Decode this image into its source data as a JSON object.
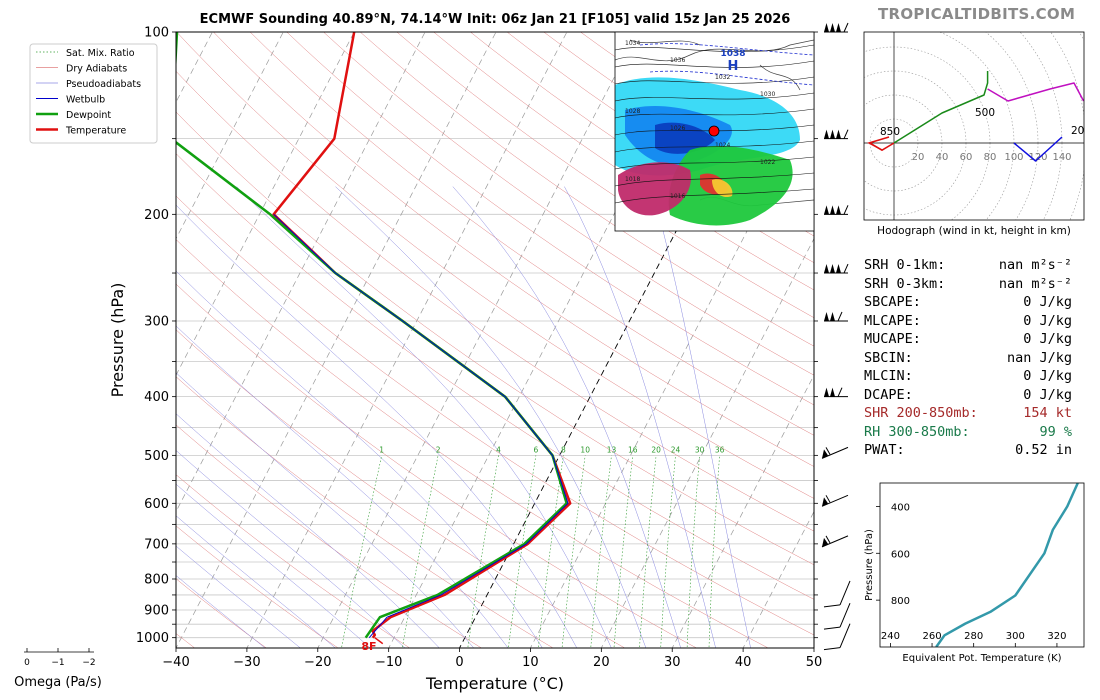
{
  "brand": "TROPICALTIDBITS.COM",
  "title": "ECMWF Sounding 40.89°N, 74.14°W Init: 06z Jan 21 [F105] valid 15z Jan 25 2026",
  "chart_data": [
    {
      "type": "skewt",
      "xlabel": "Temperature (°C)",
      "ylabel": "Pressure (hPa)",
      "xlim": [
        -40,
        50
      ],
      "ylim": [
        1040,
        100
      ],
      "x_ticks": [
        -40,
        -30,
        -20,
        -10,
        0,
        10,
        20,
        30,
        40,
        50
      ],
      "y_ticks": [
        100,
        200,
        300,
        400,
        500,
        600,
        700,
        800,
        900,
        1000
      ],
      "y_scale": "log",
      "legend": {
        "placement": "top-left",
        "entries": [
          "Sat. Mix. Ratio",
          "Dry Adiabats",
          "Pseudoadiabats",
          "Wetbulb",
          "Dewpoint",
          "Temperature"
        ]
      },
      "mixing_ratio_labels": [
        "1",
        "2",
        "4",
        "6",
        "8",
        "10",
        "13",
        "16",
        "20",
        "24",
        "30",
        "36"
      ],
      "surface_label": "8F",
      "series": [
        {
          "name": "Temperature",
          "color": "#e01010",
          "points": [
            [
              1000,
              -13
            ],
            [
              990,
              -12.9
            ],
            [
              975,
              -13.5
            ],
            [
              925,
              -12
            ],
            [
              850,
              -6
            ],
            [
              700,
              2
            ],
            [
              600,
              5
            ],
            [
              500,
              -1
            ],
            [
              400,
              -12
            ],
            [
              300,
              -32
            ],
            [
              250,
              -45
            ],
            [
              200,
              -58
            ],
            [
              150,
              -55
            ],
            [
              100,
              -60
            ]
          ]
        },
        {
          "name": "Dewpoint",
          "color": "#10a010",
          "points": [
            [
              1000,
              -14
            ],
            [
              925,
              -13.5
            ],
            [
              850,
              -7
            ],
            [
              700,
              1.5
            ],
            [
              600,
              4.5
            ],
            [
              500,
              -1
            ],
            [
              400,
              -12
            ],
            [
              300,
              -32
            ],
            [
              250,
              -45
            ],
            [
              200,
              -58.5
            ],
            [
              150,
              -78
            ],
            [
              100,
              -85
            ]
          ]
        },
        {
          "name": "Wetbulb",
          "color": "#0000cc",
          "points": [
            [
              1000,
              -13.5
            ],
            [
              925,
              -12.5
            ],
            [
              850,
              -6.5
            ],
            [
              700,
              1.8
            ],
            [
              600,
              4.7
            ],
            [
              500,
              -1
            ],
            [
              400,
              -12
            ],
            [
              300,
              -32
            ],
            [
              250,
              -45
            ],
            [
              200,
              -58
            ]
          ]
        }
      ],
      "wind_barb_pressures": [
        100,
        150,
        200,
        250,
        300,
        400,
        500,
        600,
        700,
        850,
        925,
        1000
      ],
      "omega": {
        "label": "Omega (Pa/s)",
        "ticks": [
          "0",
          "−1",
          "−2"
        ]
      }
    },
    {
      "type": "line",
      "title": "Hodograph (wind in kt, height in km)",
      "ring_labels": [
        "20",
        "40",
        "60",
        "80",
        "100",
        "120",
        "140"
      ],
      "height_labels": [
        "850",
        "500",
        "200"
      ],
      "series": [
        {
          "color": "#e01010",
          "u": [
            -20,
            -10,
            0
          ],
          "v": [
            0,
            -6,
            0
          ]
        },
        {
          "color": "#1010e0",
          "u": [
            100,
            118,
            140
          ],
          "v": [
            0,
            -15,
            5
          ]
        },
        {
          "color": "#1a8a1a",
          "u": [
            0,
            40,
            75,
            78,
            78
          ],
          "v": [
            0,
            25,
            40,
            50,
            60
          ]
        },
        {
          "color": "#c010c0",
          "u": [
            78,
            95,
            130,
            150,
            158
          ],
          "v": [
            45,
            35,
            45,
            50,
            35
          ]
        }
      ]
    },
    {
      "type": "line",
      "xlabel": "Equivalent Pot. Temperature (K)",
      "ylabel": "Pressure (hPa)",
      "x_ticks": [
        240,
        260,
        280,
        300,
        320
      ],
      "y_ticks": [
        400,
        600,
        800
      ],
      "xlim": [
        235,
        333
      ],
      "ylim": [
        1000,
        300
      ],
      "series": [
        {
          "color": "#3399aa",
          "theta_e": [
            262,
            266,
            276,
            288,
            300,
            314,
            318,
            325,
            330
          ],
          "pressure": [
            1000,
            950,
            900,
            850,
            780,
            600,
            500,
            400,
            300
          ]
        }
      ]
    }
  ],
  "stats": [
    {
      "label": "SRH 0-1km:",
      "value": "nan m²s⁻²",
      "color": "#000000"
    },
    {
      "label": "SRH 0-3km:",
      "value": "nan m²s⁻²",
      "color": "#000000"
    },
    {
      "label": "SBCAPE:",
      "value": "0 J/kg",
      "color": "#000000"
    },
    {
      "label": "MLCAPE:",
      "value": "0 J/kg",
      "color": "#000000"
    },
    {
      "label": "MUCAPE:",
      "value": "0 J/kg",
      "color": "#000000"
    },
    {
      "label": "SBCIN:",
      "value": "nan J/kg",
      "color": "#000000"
    },
    {
      "label": "MLCIN:",
      "value": "0 J/kg",
      "color": "#000000"
    },
    {
      "label": "DCAPE:",
      "value": "0 J/kg",
      "color": "#000000"
    },
    {
      "label": "SHR 200-850mb:",
      "value": "154 kt",
      "color": "#a52a2a"
    },
    {
      "label": "RH 300-850mb:",
      "value": "99 %",
      "color": "#1a7a4a"
    },
    {
      "label": "PWAT:",
      "value": "0.52 in",
      "color": "#000000"
    }
  ],
  "inset_map": {
    "high_label": "1038",
    "high_letter": "H",
    "isobar_labels": [
      "1034",
      "1036",
      "1032",
      "1030",
      "1028",
      "1026",
      "1024",
      "1022",
      "1018",
      "1016"
    ]
  }
}
